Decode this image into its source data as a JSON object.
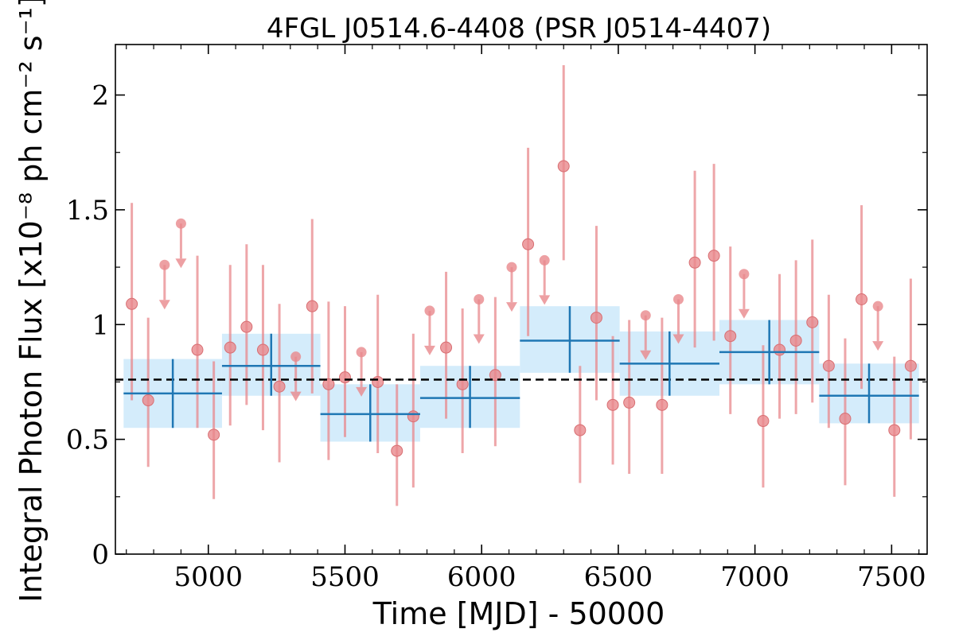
{
  "chart_data": {
    "type": "scatter",
    "title": "4FGL J0514.6-4408 (PSR J0514-4407)",
    "xlabel": "Time [MJD] - 50000",
    "ylabel": "Integral Photon Flux [x10⁻⁸ ph cm⁻² s⁻¹]",
    "xlim": [
      4660,
      7630
    ],
    "ylim": [
      0,
      2.22
    ],
    "xticks": [
      5000,
      5500,
      6000,
      6500,
      7000,
      7500
    ],
    "xtick_labels": [
      "5000",
      "5500",
      "6000",
      "6500",
      "7000",
      "7500"
    ],
    "yticks": [
      0,
      0.5,
      1,
      1.5,
      2
    ],
    "ytick_labels": [
      "0",
      "0.5",
      "1",
      "1.5",
      "2"
    ],
    "grid": false,
    "mean_flux": 0.76,
    "colors": {
      "fine_points": "#e8888c",
      "coarse_bins": "#1f77b4",
      "coarse_band": "#d4ecfb",
      "mean_line": "#000000"
    },
    "series": [
      {
        "points": [
          {
            "x": 4720,
            "y": 1.09,
            "lo": 0.67,
            "hi": 1.53
          },
          {
            "x": 4780,
            "y": 0.67,
            "lo": 0.38,
            "hi": 1.03
          },
          {
            "x": 4840,
            "ul": 1.26
          },
          {
            "x": 4900,
            "ul": 1.44
          },
          {
            "x": 4960,
            "y": 0.89,
            "lo": 0.55,
            "hi": 1.3
          },
          {
            "x": 5020,
            "y": 0.52,
            "lo": 0.24,
            "hi": 0.84
          },
          {
            "x": 5080,
            "y": 0.9,
            "lo": 0.56,
            "hi": 1.26
          },
          {
            "x": 5140,
            "y": 0.99,
            "lo": 0.65,
            "hi": 1.35
          },
          {
            "x": 5200,
            "y": 0.89,
            "lo": 0.54,
            "hi": 1.26
          },
          {
            "x": 5260,
            "y": 0.73,
            "lo": 0.4,
            "hi": 1.09
          },
          {
            "x": 5320,
            "ul": 0.86
          },
          {
            "x": 5380,
            "y": 1.08,
            "lo": 0.7,
            "hi": 1.46
          },
          {
            "x": 5440,
            "y": 0.74,
            "lo": 0.41,
            "hi": 1.1
          },
          {
            "x": 5500,
            "y": 0.77,
            "lo": 0.51,
            "hi": 1.08
          },
          {
            "x": 5560,
            "ul": 0.88
          },
          {
            "x": 5620,
            "y": 0.75,
            "lo": 0.44,
            "hi": 1.13
          },
          {
            "x": 5690,
            "y": 0.45,
            "lo": 0.21,
            "hi": 0.74
          },
          {
            "x": 5750,
            "y": 0.6,
            "lo": 0.29,
            "hi": 0.96
          },
          {
            "x": 5810,
            "ul": 1.06
          },
          {
            "x": 5870,
            "y": 0.9,
            "lo": 0.59,
            "hi": 1.23
          },
          {
            "x": 5930,
            "y": 0.74,
            "lo": 0.44,
            "hi": 1.07
          },
          {
            "x": 5990,
            "ul": 1.11
          },
          {
            "x": 6050,
            "y": 0.78,
            "lo": 0.47,
            "hi": 1.12
          },
          {
            "x": 6110,
            "ul": 1.25
          },
          {
            "x": 6170,
            "y": 1.35,
            "lo": 0.95,
            "hi": 1.77
          },
          {
            "x": 6230,
            "ul": 1.28
          },
          {
            "x": 6300,
            "y": 1.69,
            "lo": 1.28,
            "hi": 2.13
          },
          {
            "x": 6360,
            "y": 0.54,
            "lo": 0.31,
            "hi": 0.82
          },
          {
            "x": 6420,
            "y": 1.03,
            "lo": 0.67,
            "hi": 1.43
          },
          {
            "x": 6480,
            "y": 0.65,
            "lo": 0.39,
            "hi": 0.95
          },
          {
            "x": 6540,
            "y": 0.66,
            "lo": 0.35,
            "hi": 1.02
          },
          {
            "x": 6600,
            "ul": 1.04
          },
          {
            "x": 6660,
            "y": 0.65,
            "lo": 0.35,
            "hi": 1.03
          },
          {
            "x": 6720,
            "ul": 1.11
          },
          {
            "x": 6780,
            "y": 1.27,
            "lo": 0.9,
            "hi": 1.67
          },
          {
            "x": 6850,
            "y": 1.3,
            "lo": 0.93,
            "hi": 1.7
          },
          {
            "x": 6910,
            "y": 0.95,
            "lo": 0.61,
            "hi": 1.34
          },
          {
            "x": 6960,
            "ul": 1.22
          },
          {
            "x": 7030,
            "y": 0.58,
            "lo": 0.29,
            "hi": 0.91
          },
          {
            "x": 7090,
            "y": 0.89,
            "lo": 0.59,
            "hi": 1.22
          },
          {
            "x": 7150,
            "y": 0.93,
            "lo": 0.61,
            "hi": 1.28
          },
          {
            "x": 7210,
            "y": 1.01,
            "lo": 0.66,
            "hi": 1.37
          },
          {
            "x": 7270,
            "y": 0.82,
            "lo": 0.55,
            "hi": 1.13
          },
          {
            "x": 7330,
            "y": 0.59,
            "lo": 0.3,
            "hi": 0.94
          },
          {
            "x": 7390,
            "y": 1.11,
            "lo": 0.72,
            "hi": 1.52
          },
          {
            "x": 7450,
            "ul": 1.08
          },
          {
            "x": 7510,
            "y": 0.54,
            "lo": 0.25,
            "hi": 0.86
          },
          {
            "x": 7570,
            "y": 0.82,
            "lo": 0.5,
            "hi": 1.2
          }
        ]
      },
      {
        "bins": [
          {
            "x0": 4690,
            "x1": 5050,
            "y": 0.7,
            "lo": 0.55,
            "hi": 0.85
          },
          {
            "x0": 5050,
            "x1": 5410,
            "y": 0.82,
            "lo": 0.69,
            "hi": 0.96
          },
          {
            "x0": 5410,
            "x1": 5775,
            "y": 0.61,
            "lo": 0.49,
            "hi": 0.74
          },
          {
            "x0": 5775,
            "x1": 6140,
            "y": 0.68,
            "lo": 0.55,
            "hi": 0.82
          },
          {
            "x0": 6140,
            "x1": 6505,
            "y": 0.93,
            "lo": 0.79,
            "hi": 1.08
          },
          {
            "x0": 6505,
            "x1": 6870,
            "y": 0.83,
            "lo": 0.69,
            "hi": 0.97
          },
          {
            "x0": 6870,
            "x1": 7235,
            "y": 0.88,
            "lo": 0.74,
            "hi": 1.02
          },
          {
            "x0": 7235,
            "x1": 7600,
            "y": 0.69,
            "lo": 0.57,
            "hi": 0.83
          }
        ]
      }
    ]
  }
}
